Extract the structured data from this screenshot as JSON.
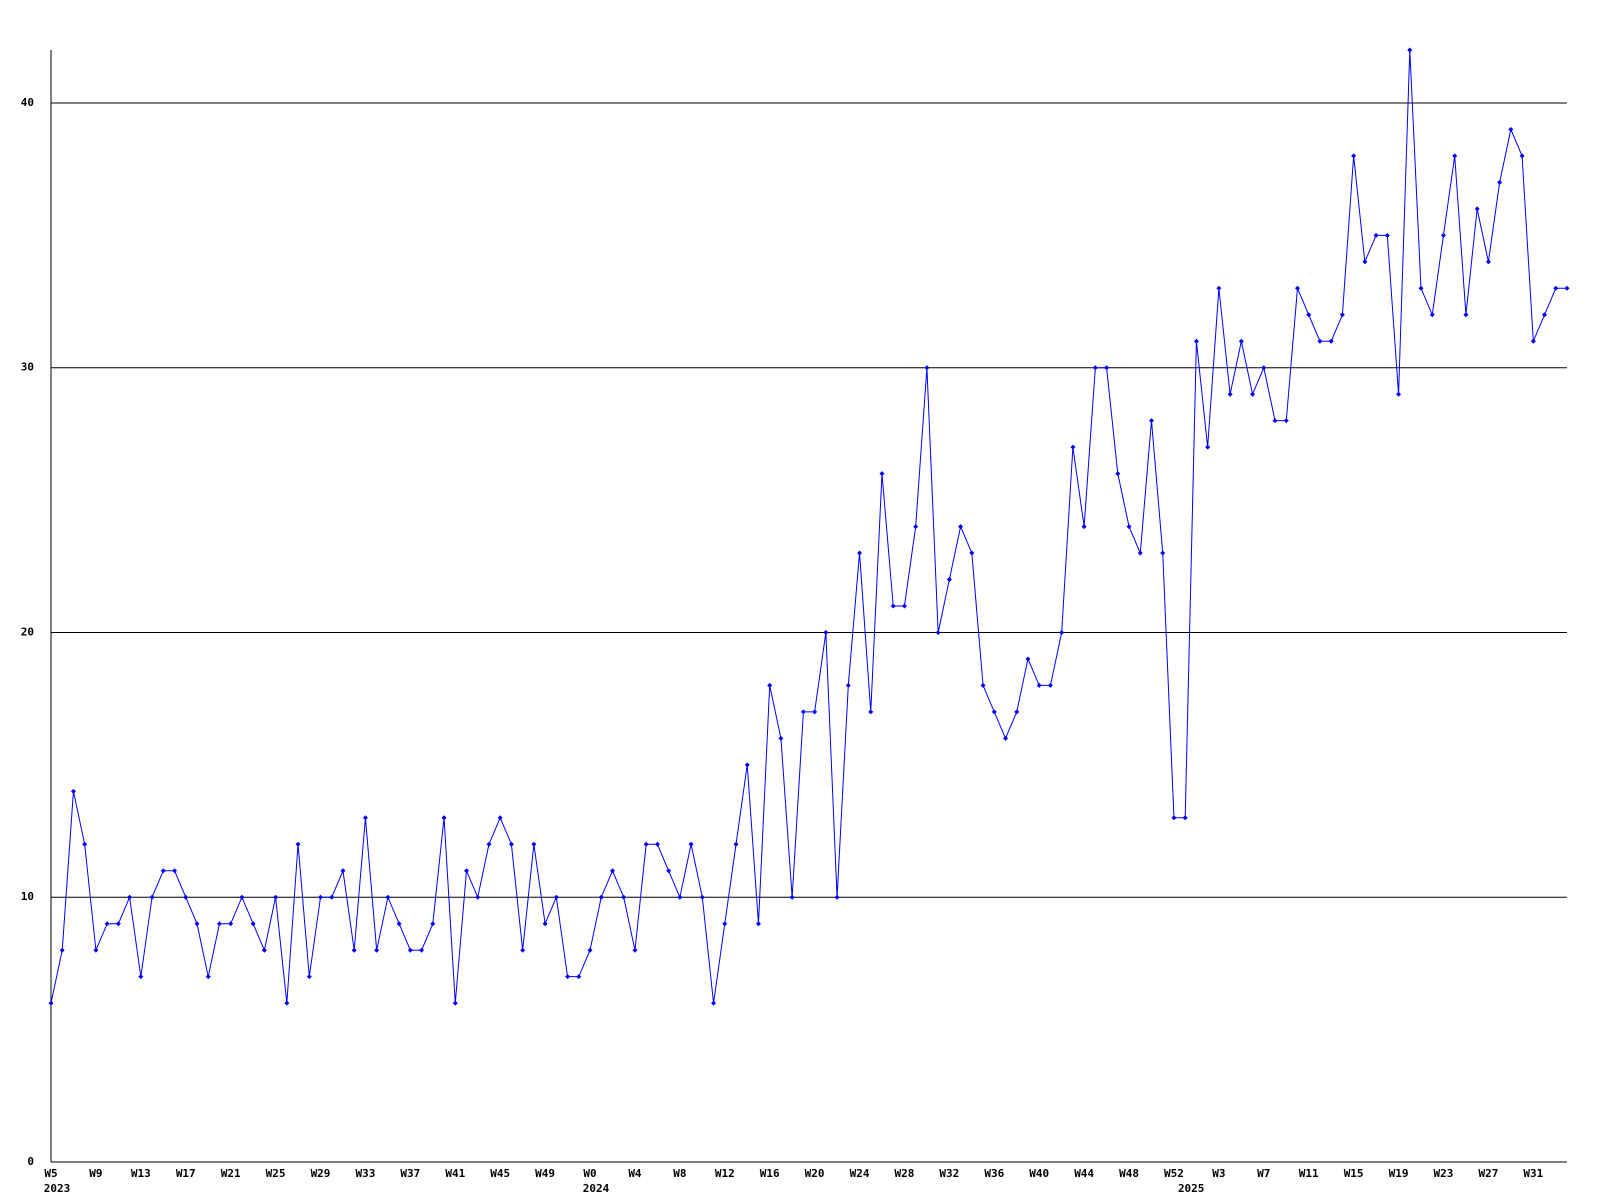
{
  "chart_data": {
    "type": "line",
    "categories": [
      "W5",
      null,
      null,
      null,
      "W9",
      null,
      null,
      null,
      "W13",
      null,
      null,
      null,
      "W17",
      null,
      null,
      null,
      "W21",
      null,
      null,
      null,
      "W25",
      null,
      null,
      null,
      "W29",
      null,
      null,
      null,
      "W33",
      null,
      null,
      null,
      "W37",
      null,
      null,
      null,
      "W41",
      null,
      null,
      null,
      "W45",
      null,
      null,
      null,
      "W49",
      null,
      null,
      null,
      "W0",
      null,
      null,
      null,
      "W4",
      null,
      null,
      null,
      "W8",
      null,
      null,
      null,
      "W12",
      null,
      null,
      null,
      "W16",
      null,
      null,
      null,
      "W20",
      null,
      null,
      null,
      "W24",
      null,
      null,
      null,
      "W28",
      null,
      null,
      null,
      "W32",
      null,
      null,
      null,
      "W36",
      null,
      null,
      null,
      "W40",
      null,
      null,
      null,
      "W44",
      null,
      null,
      null,
      "W48",
      null,
      null,
      null,
      "W52",
      null,
      null,
      null,
      "W3",
      null,
      null,
      null,
      "W7",
      null,
      null,
      null,
      "W11",
      null,
      null,
      null,
      "W15",
      null,
      null,
      null,
      "W19",
      null,
      null,
      null,
      "W23",
      null,
      null,
      null,
      "W27",
      null,
      null,
      null,
      "W31",
      null,
      null,
      null
    ],
    "category_years": [
      "2023",
      null,
      null,
      null,
      null,
      null,
      null,
      null,
      null,
      null,
      null,
      null,
      null,
      null,
      null,
      null,
      null,
      null,
      null,
      null,
      null,
      null,
      null,
      null,
      null,
      null,
      null,
      null,
      null,
      null,
      null,
      null,
      null,
      null,
      null,
      null,
      null,
      null,
      null,
      null,
      null,
      null,
      null,
      null,
      null,
      null,
      null,
      null,
      "2024",
      null,
      null,
      null,
      null,
      null,
      null,
      null,
      null,
      null,
      null,
      null,
      null,
      null,
      null,
      null,
      null,
      null,
      null,
      null,
      null,
      null,
      null,
      null,
      null,
      null,
      null,
      null,
      null,
      null,
      null,
      null,
      null,
      null,
      null,
      null,
      null,
      null,
      null,
      null,
      null,
      null,
      null,
      null,
      null,
      null,
      null,
      null,
      null,
      null,
      null,
      null,
      null,
      "2025",
      null,
      null,
      null,
      null,
      null,
      null,
      null,
      null,
      null,
      null,
      null,
      null,
      null,
      null,
      null,
      null,
      null,
      null,
      null,
      null,
      null,
      null,
      null,
      null,
      null,
      null,
      null,
      null,
      null,
      null,
      null,
      null,
      null
    ],
    "series": [
      {
        "color": "#0000ff",
        "values": [
          6,
          8,
          14,
          12,
          8,
          9,
          9,
          10,
          7,
          10,
          11,
          11,
          10,
          9,
          7,
          9,
          9,
          10,
          9,
          8,
          10,
          6,
          12,
          7,
          10,
          10,
          11,
          8,
          13,
          8,
          10,
          9,
          8,
          8,
          9,
          13,
          6,
          11,
          10,
          12,
          13,
          12,
          8,
          12,
          9,
          10,
          7,
          7,
          8,
          10,
          11,
          10,
          8,
          12,
          12,
          11,
          10,
          12,
          10,
          6,
          9,
          12,
          15,
          9,
          18,
          16,
          10,
          17,
          17,
          20,
          10,
          18,
          23,
          17,
          26,
          21,
          21,
          24,
          30,
          20,
          22,
          24,
          23,
          18,
          17,
          16,
          17,
          19,
          18,
          18,
          20,
          27,
          24,
          30,
          30,
          26,
          24,
          23,
          28,
          23,
          13,
          13,
          31,
          27,
          33,
          29,
          31,
          29,
          30,
          28,
          28,
          33,
          32,
          31,
          31,
          32,
          38,
          34,
          35,
          35,
          29,
          42,
          33,
          32,
          35,
          38,
          32,
          36,
          34,
          37,
          39,
          38,
          31,
          32,
          33,
          33
        ]
      }
    ],
    "ylim": [
      0,
      42
    ],
    "yticks": [
      0,
      10,
      20,
      30,
      40
    ],
    "grid": true
  }
}
